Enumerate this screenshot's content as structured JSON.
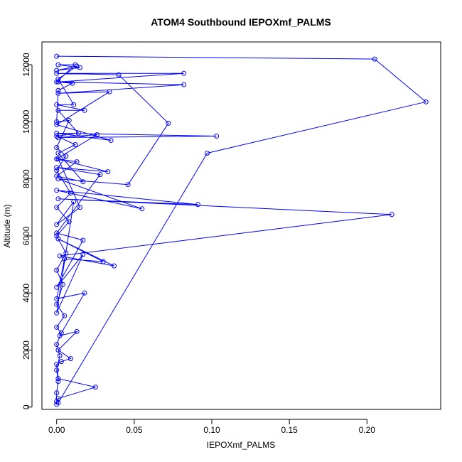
{
  "chart_data": {
    "type": "line",
    "title": "ATOM4 Southbound IEPOXmf_PALMS",
    "xlabel": "IEPOXmf_PALMS",
    "ylabel": "Altitude (m)",
    "xlim": [
      -0.0095,
      0.2475
    ],
    "ylim": [
      -80,
      12800
    ],
    "x_ticks": [
      0.0,
      0.05,
      0.1,
      0.15,
      0.2
    ],
    "x_tick_labels": [
      "0.00",
      "0.05",
      "0.10",
      "0.15",
      "0.20"
    ],
    "y_ticks": [
      0,
      2000,
      4000,
      6000,
      8000,
      10000,
      12000
    ],
    "y_tick_labels": [
      "0",
      "2000",
      "4000",
      "6000",
      "8000",
      "10000",
      "12000"
    ],
    "grid": false,
    "legend": "none",
    "color": "#0000ff",
    "series": [
      {
        "points": [
          [
            0.0,
            12300
          ],
          [
            0.205,
            12200
          ],
          [
            0.238,
            10700
          ],
          [
            0.097,
            8900
          ],
          [
            0.001,
            150
          ],
          [
            0.001,
            300
          ],
          [
            0.025,
            700
          ],
          [
            0.001,
            1000
          ],
          [
            0.0,
            1500
          ],
          [
            0.003,
            1600
          ],
          [
            0.009,
            1700
          ],
          [
            0.001,
            2000
          ],
          [
            0.013,
            2650
          ],
          [
            0.002,
            2500
          ],
          [
            0.018,
            4000
          ],
          [
            0.0,
            3800
          ],
          [
            0.005,
            5200
          ],
          [
            0.03,
            5100
          ],
          [
            0.001,
            5900
          ],
          [
            0.037,
            4950
          ],
          [
            0.002,
            5300
          ],
          [
            0.216,
            6750
          ],
          [
            0.001,
            7300
          ],
          [
            0.091,
            7100
          ],
          [
            0.0,
            7600
          ],
          [
            0.055,
            6950
          ],
          [
            0.001,
            8000
          ],
          [
            0.046,
            7800
          ],
          [
            0.072,
            9950
          ],
          [
            0.04,
            11650
          ],
          [
            0.0,
            11700
          ],
          [
            0.082,
            11700
          ],
          [
            0.001,
            11400
          ],
          [
            0.082,
            11300
          ],
          [
            0.001,
            11000
          ],
          [
            0.034,
            11050
          ],
          [
            0.0,
            9900
          ],
          [
            0.035,
            9350
          ],
          [
            0.0,
            9600
          ],
          [
            0.103,
            9500
          ],
          [
            0.001,
            9450
          ],
          [
            0.026,
            9550
          ],
          [
            0.0,
            8700
          ],
          [
            0.033,
            8250
          ],
          [
            0.0,
            8400
          ],
          [
            0.028,
            8150
          ],
          [
            0.0,
            6100
          ],
          [
            0.017,
            5850
          ],
          [
            0.0,
            4200
          ],
          [
            0.017,
            5350
          ],
          [
            0.0,
            3300
          ],
          [
            0.011,
            7200
          ],
          [
            0.0,
            6400
          ],
          [
            0.015,
            7000
          ],
          [
            0.001,
            8700
          ],
          [
            0.013,
            8600
          ],
          [
            0.0,
            8100
          ],
          [
            0.017,
            7900
          ],
          [
            0.001,
            8900
          ],
          [
            0.012,
            9200
          ],
          [
            0.0,
            9500
          ],
          [
            0.014,
            9600
          ],
          [
            0.001,
            10400
          ],
          [
            0.018,
            10400
          ],
          [
            0.0,
            10600
          ],
          [
            0.011,
            10600
          ],
          [
            0.001,
            11500
          ],
          [
            0.013,
            11950
          ],
          [
            0.0,
            11800
          ],
          [
            0.015,
            11900
          ],
          [
            0.001,
            12000
          ],
          [
            0.012,
            12000
          ],
          [
            0.0,
            11400
          ],
          [
            0.01,
            11350
          ],
          [
            0.001,
            11100
          ],
          [
            0.0,
            10000
          ],
          [
            0.008,
            10050
          ],
          [
            0.0,
            9100
          ],
          [
            0.006,
            8800
          ],
          [
            0.0,
            8300
          ],
          [
            0.009,
            7500
          ],
          [
            0.0,
            7000
          ],
          [
            0.008,
            6500
          ],
          [
            0.0,
            6000
          ],
          [
            0.006,
            5400
          ],
          [
            0.0,
            4800
          ],
          [
            0.004,
            4300
          ],
          [
            0.0,
            3600
          ],
          [
            0.005,
            3200
          ],
          [
            0.0,
            2800
          ],
          [
            0.003,
            2600
          ],
          [
            0.0,
            2200
          ],
          [
            0.002,
            1800
          ],
          [
            0.0,
            1300
          ],
          [
            0.001,
            900
          ],
          [
            0.0,
            500
          ],
          [
            0.0,
            200
          ],
          [
            0.0,
            100
          ]
        ]
      }
    ]
  }
}
